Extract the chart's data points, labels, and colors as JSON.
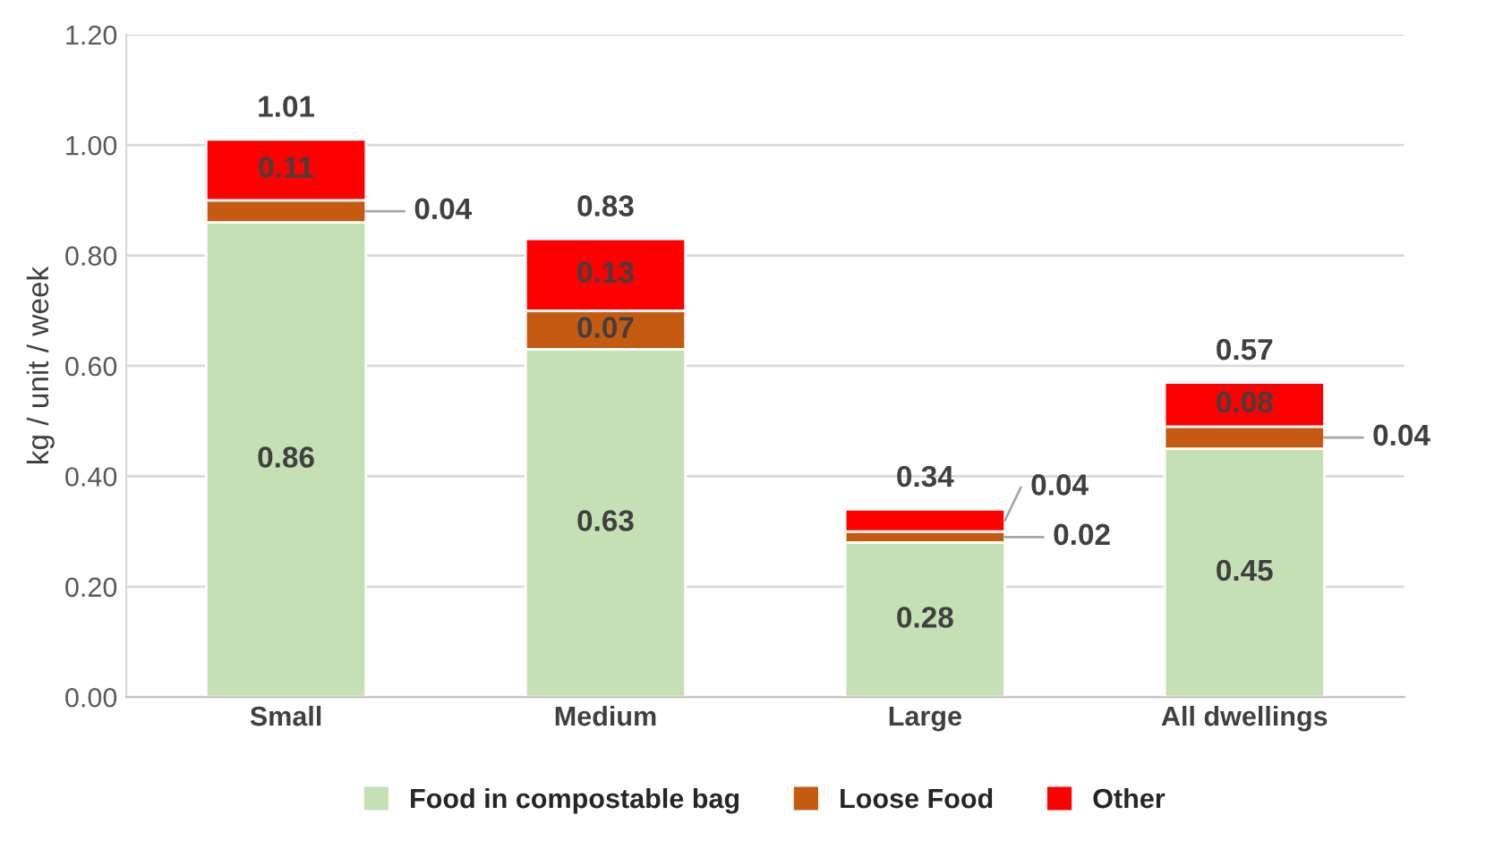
{
  "chart_data": {
    "type": "bar",
    "stacked": true,
    "ylabel": "kg / unit / week",
    "categories": [
      "Small",
      "Medium",
      "Large",
      "All dwellings"
    ],
    "series": [
      {
        "name": "Food in compostable bag",
        "color": "#c5e0b4",
        "values": [
          0.86,
          0.63,
          0.28,
          0.45
        ]
      },
      {
        "name": "Loose Food",
        "color": "#c55a11",
        "values": [
          0.04,
          0.07,
          0.02,
          0.04
        ]
      },
      {
        "name": "Other",
        "color": "#ff0000",
        "values": [
          0.11,
          0.13,
          0.04,
          0.08
        ]
      }
    ],
    "totals": [
      "1.01",
      "0.83",
      "0.34",
      "0.57"
    ],
    "data_labels": true,
    "ylim": [
      0,
      1.2
    ],
    "yticks": [
      {
        "value": 0,
        "label": "0.00"
      },
      {
        "value": 0.2,
        "label": "0.20"
      },
      {
        "value": 0.4,
        "label": "0.40"
      },
      {
        "value": 0.6,
        "label": "0.60"
      },
      {
        "value": 0.8,
        "label": "0.80"
      },
      {
        "value": 1.0,
        "label": "1.00"
      },
      {
        "value": 1.2,
        "label": "1.20"
      }
    ],
    "grid": "y",
    "legend": "bottom"
  }
}
